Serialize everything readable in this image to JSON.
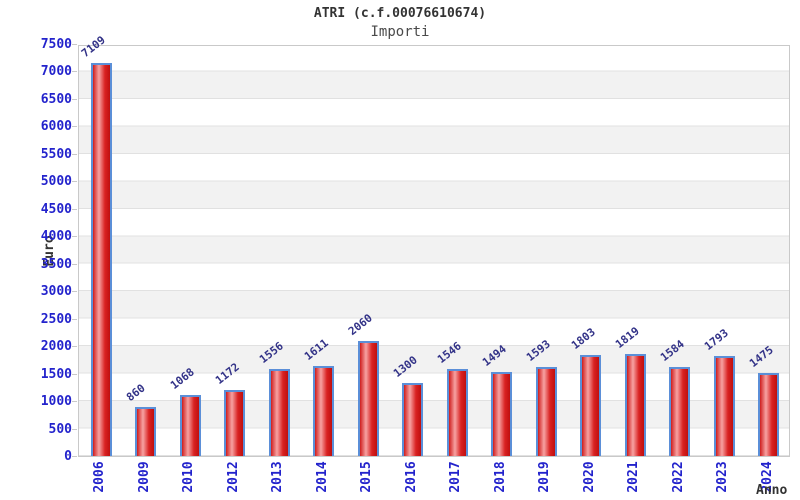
{
  "header": {
    "title": "ATRI (c.f.00076610674)",
    "subtitle": "Importi"
  },
  "chart_data": {
    "type": "bar",
    "title": "ATRI (c.f.00076610674)",
    "subtitle": "Importi",
    "xlabel": "Anno",
    "ylabel": "Euro",
    "categories": [
      "2006",
      "2009",
      "2010",
      "2012",
      "2013",
      "2014",
      "2015",
      "2016",
      "2017",
      "2018",
      "2019",
      "2020",
      "2021",
      "2022",
      "2023",
      "2024"
    ],
    "values": [
      7109,
      860,
      1068,
      1172,
      1556,
      1611,
      2060,
      1300,
      1546,
      1494,
      1593,
      1803,
      1819,
      1584,
      1793,
      1475
    ],
    "ylim": [
      0,
      7500
    ],
    "ytick_step": 500,
    "grid": "horizontal-bands-alternating",
    "legend": "none",
    "colors": {
      "bar_fill_dark": "#cf1d1d",
      "bar_fill_light": "#f7a2a2",
      "bar_border": "#5b8fd8",
      "tick_label": "#2323cc",
      "value_label": "#333388",
      "band_gray": "#f2f2f2",
      "band_white": "#ffffff",
      "gridline": "#e1e1e1",
      "plot_border": "#c9c9c9",
      "axis_text": "#333333"
    }
  }
}
